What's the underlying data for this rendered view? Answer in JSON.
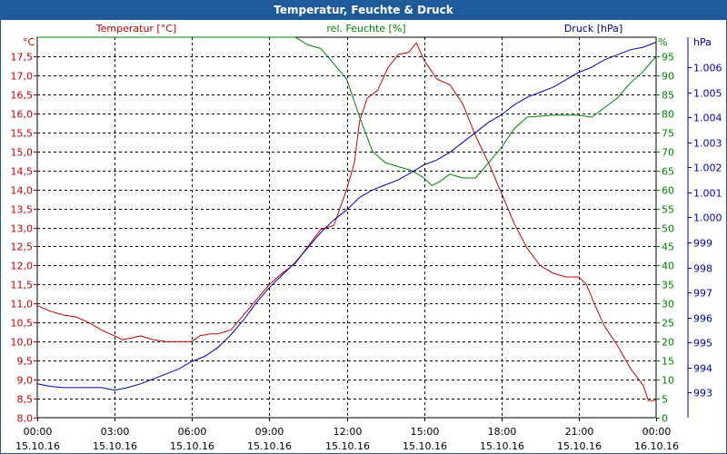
{
  "window": {
    "title": "Temperatur, Feuchte & Druck"
  },
  "colors": {
    "temperature": "#c00000",
    "humidity": "#008000",
    "pressure": "#0000b0",
    "titlebar": "#1f5b9a"
  },
  "chart_data": {
    "type": "line",
    "title": "Temperatur, Feuchte & Druck",
    "grid": true,
    "x_ticks": [
      {
        "time": "00:00",
        "date": "15.10.16"
      },
      {
        "time": "03:00",
        "date": "15.10.16"
      },
      {
        "time": "06:00",
        "date": "15.10.16"
      },
      {
        "time": "09:00",
        "date": "15.10.16"
      },
      {
        "time": "12:00",
        "date": "15.10.16"
      },
      {
        "time": "15:00",
        "date": "15.10.16"
      },
      {
        "time": "18:00",
        "date": "15.10.16"
      },
      {
        "time": "21:00",
        "date": "15.10.16"
      },
      {
        "time": "00:00",
        "date": "16.10.16"
      }
    ],
    "x_range_hours": [
      0,
      24
    ],
    "axes": {
      "temperature": {
        "label": "Temperatur [°C]",
        "unit": "°C",
        "range": [
          8.0,
          18.0
        ],
        "ticks": [
          "8,0",
          "8,5",
          "9,0",
          "9,5",
          "10,0",
          "10,5",
          "11,0",
          "11,5",
          "12,0",
          "12,5",
          "13,0",
          "13,5",
          "14,0",
          "14,5",
          "15,0",
          "15,5",
          "16,0",
          "16,5",
          "17,0",
          "17,5"
        ]
      },
      "humidity": {
        "label": "rel. Feuchte [%]",
        "unit": "%",
        "range": [
          0,
          100
        ],
        "ticks": [
          "0",
          "5",
          "10",
          "15",
          "20",
          "25",
          "30",
          "35",
          "40",
          "45",
          "50",
          "55",
          "60",
          "65",
          "70",
          "75",
          "80",
          "85",
          "90",
          "95"
        ]
      },
      "pressure": {
        "label": "Druck [hPa]",
        "unit": "hPa",
        "range": [
          992.0,
          1007.2
        ],
        "ticks": [
          "993",
          "994",
          "995",
          "996",
          "997",
          "998",
          "999",
          "1.000",
          "1.001",
          "1.002",
          "1.003",
          "1.004",
          "1.005",
          "1.006"
        ]
      }
    },
    "series": [
      {
        "name": "Temperatur [°C]",
        "axis": "temperature",
        "points": [
          [
            0,
            10.95
          ],
          [
            0.5,
            10.8
          ],
          [
            1,
            10.7
          ],
          [
            1.5,
            10.65
          ],
          [
            2,
            10.5
          ],
          [
            2.5,
            10.3
          ],
          [
            3,
            10.15
          ],
          [
            3.3,
            10.05
          ],
          [
            3.7,
            10.1
          ],
          [
            4,
            10.15
          ],
          [
            4.5,
            10.05
          ],
          [
            5,
            10.0
          ],
          [
            5.5,
            10.0
          ],
          [
            6,
            10.0
          ],
          [
            6.3,
            10.15
          ],
          [
            6.7,
            10.2
          ],
          [
            7,
            10.2
          ],
          [
            7.5,
            10.3
          ],
          [
            8,
            10.7
          ],
          [
            8.5,
            11.1
          ],
          [
            9,
            11.5
          ],
          [
            9.5,
            11.8
          ],
          [
            10,
            12.05
          ],
          [
            10.5,
            12.5
          ],
          [
            11,
            12.95
          ],
          [
            11.5,
            13.05
          ],
          [
            12,
            14.0
          ],
          [
            12.3,
            14.7
          ],
          [
            12.5,
            15.8
          ],
          [
            12.8,
            16.4
          ],
          [
            13.2,
            16.6
          ],
          [
            13.6,
            17.2
          ],
          [
            14,
            17.55
          ],
          [
            14.4,
            17.6
          ],
          [
            14.7,
            17.85
          ],
          [
            15,
            17.4
          ],
          [
            15.5,
            16.9
          ],
          [
            16,
            16.75
          ],
          [
            16.5,
            16.25
          ],
          [
            17,
            15.4
          ],
          [
            17.5,
            14.7
          ],
          [
            18,
            13.9
          ],
          [
            18.5,
            13.1
          ],
          [
            19,
            12.45
          ],
          [
            19.5,
            12.0
          ],
          [
            20,
            11.8
          ],
          [
            20.5,
            11.7
          ],
          [
            21,
            11.7
          ],
          [
            21.3,
            11.5
          ],
          [
            21.6,
            11.0
          ],
          [
            22,
            10.4
          ],
          [
            22.5,
            9.9
          ],
          [
            23,
            9.3
          ],
          [
            23.5,
            8.85
          ],
          [
            23.7,
            8.45
          ],
          [
            24,
            8.45
          ]
        ]
      },
      {
        "name": "rel. Feuchte [%]",
        "axis": "humidity",
        "points": [
          [
            0,
            100
          ],
          [
            10,
            100
          ],
          [
            10.5,
            98
          ],
          [
            11,
            97
          ],
          [
            11.5,
            93
          ],
          [
            12,
            89
          ],
          [
            12.5,
            79
          ],
          [
            13,
            70
          ],
          [
            13.5,
            67
          ],
          [
            14,
            66
          ],
          [
            14.5,
            65
          ],
          [
            15,
            63
          ],
          [
            15.3,
            61
          ],
          [
            15.6,
            62
          ],
          [
            16,
            64
          ],
          [
            16.5,
            63
          ],
          [
            17,
            63
          ],
          [
            17.5,
            67
          ],
          [
            18,
            71
          ],
          [
            18.5,
            76
          ],
          [
            19,
            79
          ],
          [
            20,
            79.5
          ],
          [
            21,
            79.5
          ],
          [
            21.5,
            79
          ],
          [
            22,
            81.5
          ],
          [
            22.5,
            84
          ],
          [
            23,
            88
          ],
          [
            23.5,
            91
          ],
          [
            24,
            95
          ]
        ]
      },
      {
        "name": "Druck [hPa]",
        "axis": "pressure",
        "points": [
          [
            0,
            993.35
          ],
          [
            0.5,
            993.25
          ],
          [
            1,
            993.2
          ],
          [
            1.5,
            993.2
          ],
          [
            2,
            993.2
          ],
          [
            2.5,
            993.2
          ],
          [
            3,
            993.1
          ],
          [
            3.5,
            993.2
          ],
          [
            4,
            993.35
          ],
          [
            4.5,
            993.55
          ],
          [
            5,
            993.75
          ],
          [
            5.5,
            993.95
          ],
          [
            6,
            994.25
          ],
          [
            6.5,
            994.45
          ],
          [
            7,
            994.8
          ],
          [
            7.5,
            995.3
          ],
          [
            8,
            995.9
          ],
          [
            8.5,
            996.6
          ],
          [
            9,
            997.2
          ],
          [
            9.5,
            997.7
          ],
          [
            10,
            998.2
          ],
          [
            10.5,
            998.8
          ],
          [
            11,
            999.4
          ],
          [
            11.5,
            999.9
          ],
          [
            12,
            1000.3
          ],
          [
            12.5,
            1000.8
          ],
          [
            13,
            1001.1
          ],
          [
            13.5,
            1001.3
          ],
          [
            14,
            1001.5
          ],
          [
            14.5,
            1001.8
          ],
          [
            15,
            1002.1
          ],
          [
            15.5,
            1002.3
          ],
          [
            16,
            1002.6
          ],
          [
            16.5,
            1003.0
          ],
          [
            17,
            1003.4
          ],
          [
            17.5,
            1003.8
          ],
          [
            18,
            1004.1
          ],
          [
            18.5,
            1004.5
          ],
          [
            19,
            1004.8
          ],
          [
            19.5,
            1005.0
          ],
          [
            20,
            1005.2
          ],
          [
            20.5,
            1005.5
          ],
          [
            21,
            1005.8
          ],
          [
            21.5,
            1006.0
          ],
          [
            22,
            1006.3
          ],
          [
            22.5,
            1006.5
          ],
          [
            23,
            1006.7
          ],
          [
            23.5,
            1006.8
          ],
          [
            24,
            1007.0
          ]
        ]
      }
    ]
  }
}
